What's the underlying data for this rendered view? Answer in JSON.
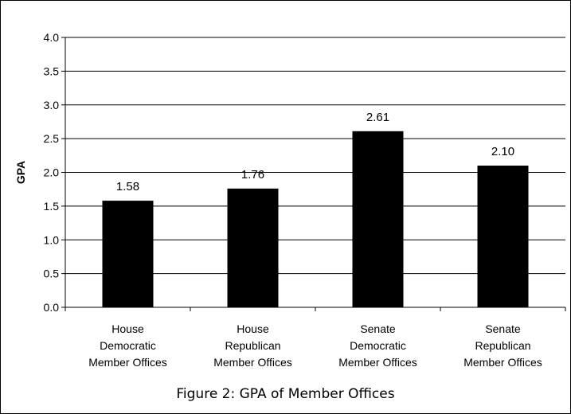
{
  "chart_data": {
    "type": "bar",
    "categories": [
      [
        "House",
        "Democratic",
        "Member Offices"
      ],
      [
        "House",
        "Republican",
        "Member Offices"
      ],
      [
        "Senate",
        "Democratic",
        "Member Offices"
      ],
      [
        "Senate",
        "Republican",
        "Member Offices"
      ]
    ],
    "values": [
      1.58,
      1.76,
      2.61,
      2.1
    ],
    "data_labels": [
      "1.58",
      "1.76",
      "2.61",
      "2.10"
    ],
    "ylabel": "GPA",
    "xlabel": "",
    "ylim": [
      0,
      4
    ],
    "yticks": [
      "0.0",
      "0.5",
      "1.0",
      "1.5",
      "2.0",
      "2.5",
      "3.0",
      "3.5",
      "4.0"
    ],
    "grid": "horizontal",
    "bar_color": "#000000",
    "legend": "none"
  },
  "caption": "Figure 2: GPA of Member Offices"
}
